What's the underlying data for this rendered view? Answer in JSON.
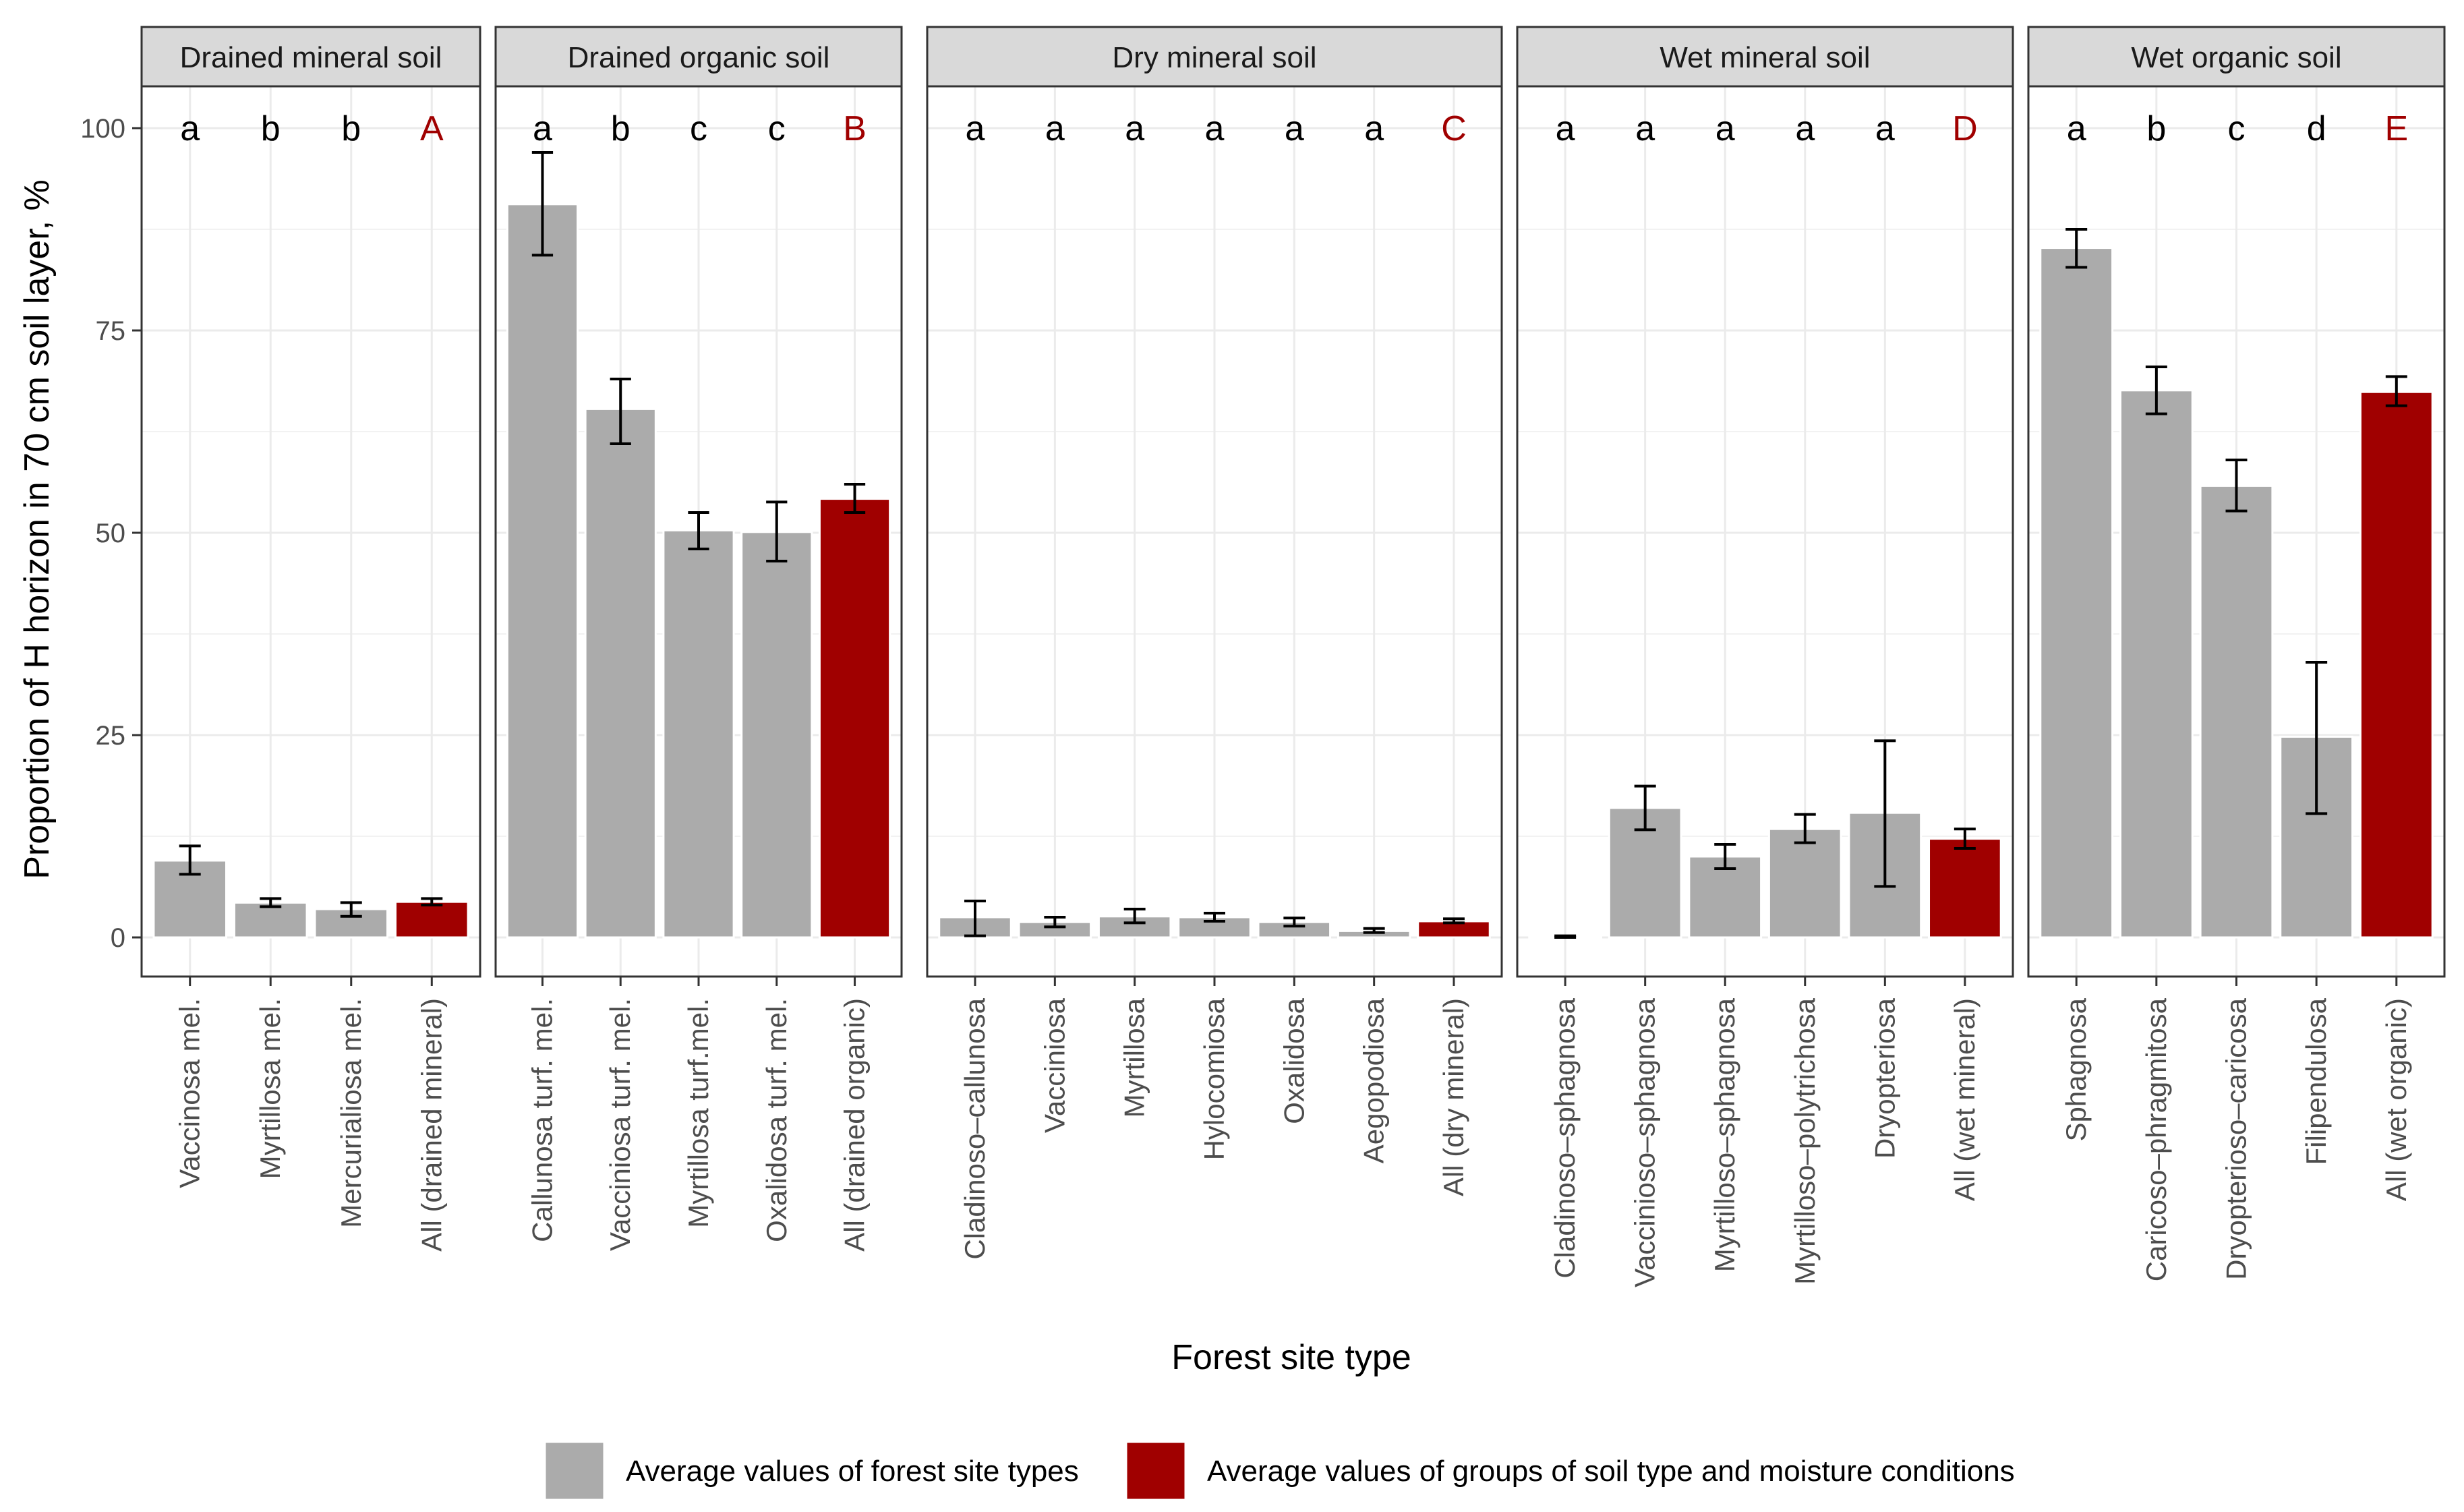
{
  "chart_data": {
    "type": "bar",
    "xlabel": "Forest site type",
    "ylabel": "Proportion of H horizon in 70 cm soil layer, %",
    "ylim": [
      0,
      100
    ],
    "yticks": [
      "0",
      "25",
      "50",
      "75",
      "100"
    ],
    "grid": true,
    "legend_position": "bottom",
    "colors": {
      "site": "#ababab",
      "group": "#a00000",
      "group_letter": "#a00000",
      "letter": "#000000"
    },
    "legend": [
      {
        "key": "site",
        "label": "Average values of forest site types"
      },
      {
        "key": "group",
        "label": "Average values of groups of soil type and moisture conditions"
      }
    ],
    "panels": [
      {
        "title": "Drained mineral soil",
        "bars": [
          {
            "category": "Vaccinosa mel.",
            "value": 9.5,
            "err": [
              7.8,
              11.3
            ],
            "letter": "a",
            "kind": "site"
          },
          {
            "category": "Myrtillosa mel.",
            "value": 4.3,
            "err": [
              3.8,
              4.8
            ],
            "letter": "b",
            "kind": "site"
          },
          {
            "category": "Mercurialiosa mel.",
            "value": 3.5,
            "err": [
              2.6,
              4.3
            ],
            "letter": "b",
            "kind": "site"
          },
          {
            "category": "All (drained mineral)",
            "value": 4.4,
            "err": [
              4.0,
              4.8
            ],
            "letter": "A",
            "kind": "group"
          }
        ]
      },
      {
        "title": "Drained organic soil",
        "bars": [
          {
            "category": "Callunosa turf. mel.",
            "value": 90.6,
            "err": [
              84.3,
              97.0
            ],
            "letter": "a",
            "kind": "site"
          },
          {
            "category": "Vacciniosa turf. mel.",
            "value": 65.3,
            "err": [
              61.0,
              69.0
            ],
            "letter": "b",
            "kind": "site"
          },
          {
            "category": "Myrtillosa turf.mel.",
            "value": 50.3,
            "err": [
              48.0,
              52.5
            ],
            "letter": "c",
            "kind": "site"
          },
          {
            "category": "Oxalidosa turf. mel.",
            "value": 50.1,
            "err": [
              46.5,
              53.8
            ],
            "letter": "c",
            "kind": "site"
          },
          {
            "category": "All (drained organic)",
            "value": 54.2,
            "err": [
              52.5,
              56.0
            ],
            "letter": "B",
            "kind": "group"
          }
        ]
      },
      {
        "title": "Dry mineral soil",
        "bars": [
          {
            "category": "Cladinoso–callunosa",
            "value": 2.5,
            "err": [
              0.2,
              4.5
            ],
            "letter": "a",
            "kind": "site"
          },
          {
            "category": "Vacciniosa",
            "value": 1.9,
            "err": [
              1.3,
              2.5
            ],
            "letter": "a",
            "kind": "site"
          },
          {
            "category": "Myrtillosa",
            "value": 2.6,
            "err": [
              1.8,
              3.5
            ],
            "letter": "a",
            "kind": "site"
          },
          {
            "category": "Hylocomiosa",
            "value": 2.5,
            "err": [
              2.0,
              3.0
            ],
            "letter": "a",
            "kind": "site"
          },
          {
            "category": "Oxalidosa",
            "value": 1.9,
            "err": [
              1.4,
              2.4
            ],
            "letter": "a",
            "kind": "site"
          },
          {
            "category": "Aegopodiosa",
            "value": 0.8,
            "err": [
              0.6,
              1.1
            ],
            "letter": "a",
            "kind": "site"
          },
          {
            "category": "All (dry mineral)",
            "value": 2.0,
            "err": [
              1.8,
              2.3
            ],
            "letter": "C",
            "kind": "group"
          }
        ]
      },
      {
        "title": "Wet mineral soil",
        "bars": [
          {
            "category": "Cladinoso–sphagnosa",
            "value": 0.1,
            "err": [
              0.0,
              0.2
            ],
            "letter": "a",
            "kind": "site"
          },
          {
            "category": "Vaccinioso–sphagnosa",
            "value": 16.0,
            "err": [
              13.3,
              18.7
            ],
            "letter": "a",
            "kind": "site"
          },
          {
            "category": "Myrtilloso–sphagnosa",
            "value": 10.0,
            "err": [
              8.5,
              11.5
            ],
            "letter": "a",
            "kind": "site"
          },
          {
            "category": "Myrtilloso–polytrichosa",
            "value": 13.4,
            "err": [
              11.7,
              15.2
            ],
            "letter": "a",
            "kind": "site"
          },
          {
            "category": "Dryopteriosa",
            "value": 15.4,
            "err": [
              6.3,
              24.3
            ],
            "letter": "a",
            "kind": "site"
          },
          {
            "category": "All (wet mineral)",
            "value": 12.2,
            "err": [
              11.0,
              13.4
            ],
            "letter": "D",
            "kind": "group"
          }
        ]
      },
      {
        "title": "Wet organic soil",
        "bars": [
          {
            "category": "Sphagnosa",
            "value": 85.2,
            "err": [
              82.8,
              87.5
            ],
            "letter": "a",
            "kind": "site"
          },
          {
            "category": "Caricoso–phragmitosa",
            "value": 67.6,
            "err": [
              64.7,
              70.5
            ],
            "letter": "b",
            "kind": "site"
          },
          {
            "category": "Dryopterioso–caricosa",
            "value": 55.8,
            "err": [
              52.7,
              59.0
            ],
            "letter": "c",
            "kind": "site"
          },
          {
            "category": "Filipendulosa",
            "value": 24.8,
            "err": [
              15.3,
              34.0
            ],
            "letter": "d",
            "kind": "site"
          },
          {
            "category": "All (wet organic)",
            "value": 67.4,
            "err": [
              65.7,
              69.3
            ],
            "letter": "E",
            "kind": "group"
          }
        ]
      }
    ]
  }
}
